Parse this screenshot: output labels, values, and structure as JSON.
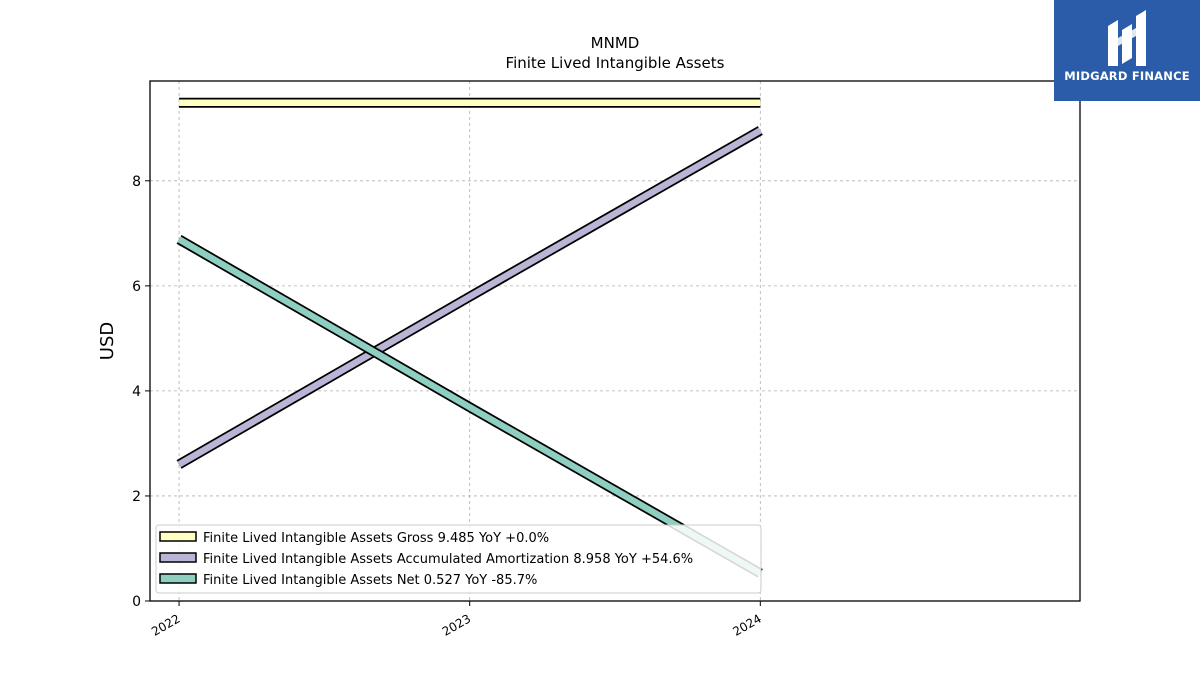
{
  "chart_data": {
    "type": "line",
    "title": "MNMD",
    "subtitle": "Finite Lived Intangible Assets",
    "ylabel": "USD",
    "xlabel": "",
    "x": [
      "2022",
      "2023",
      "2024"
    ],
    "x_values": [
      2022,
      2023,
      2024
    ],
    "xlim": [
      2021.9,
      2025.1
    ],
    "ylim": [
      0,
      9.9
    ],
    "yticks": [
      0,
      2,
      4,
      6,
      8
    ],
    "grid": true,
    "legend_position": "lower-left",
    "series": [
      {
        "name": "Finite Lived Intangible Assets Gross",
        "label": "Finite Lived Intangible Assets Gross  9.485 YoY +0.0%",
        "values": [
          9.485,
          9.485,
          9.485
        ],
        "color": "#ffffbf"
      },
      {
        "name": "Finite Lived Intangible Assets Accumulated Amortization",
        "label": "Finite Lived Intangible Assets Accumulated Amortization  8.958 YoY +54.6%",
        "values": [
          2.6,
          5.794,
          8.958
        ],
        "color": "#bcb4d6"
      },
      {
        "name": "Finite Lived Intangible Assets Net",
        "label": "Finite Lived Intangible Assets Net  0.527 YoY -85.7%",
        "values": [
          6.885,
          3.691,
          0.527
        ],
        "color": "#8ecfc1"
      }
    ]
  },
  "logo": {
    "text": "MIDGARD FINANCE",
    "icon": "midgard-logo-icon",
    "background": "#2a5caa"
  }
}
